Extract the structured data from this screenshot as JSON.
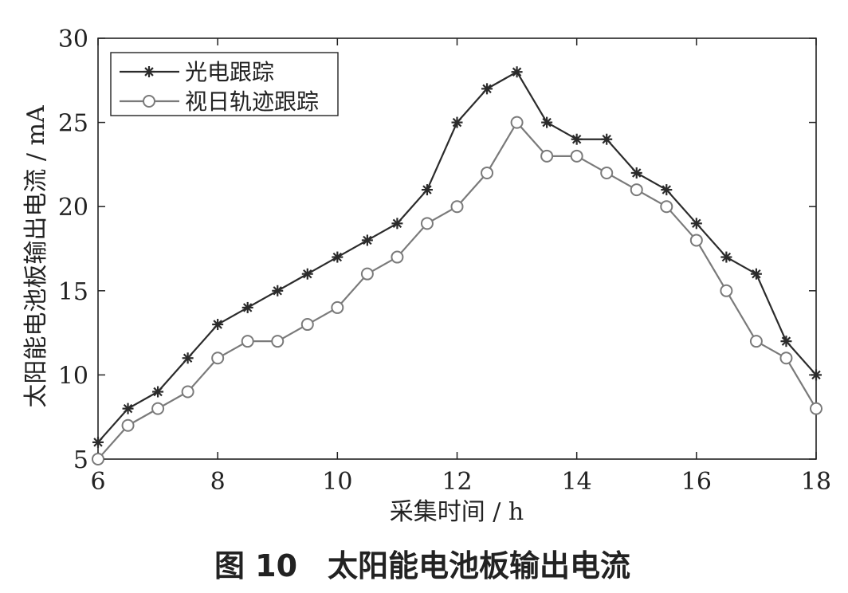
{
  "figure": {
    "caption": "图 10　太阳能电池板输出电流"
  },
  "chart_data": {
    "type": "line",
    "title": "",
    "xlabel": "采集时间 / h",
    "ylabel": "太阳能电池板输出电流 / mA",
    "xlim": [
      6,
      18
    ],
    "ylim": [
      5,
      30
    ],
    "x_ticks": [
      6,
      8,
      10,
      12,
      14,
      16,
      18
    ],
    "y_ticks": [
      5,
      10,
      15,
      20,
      25,
      30
    ],
    "grid": false,
    "legend_position": "top-left",
    "x": [
      6,
      6.5,
      7,
      7.5,
      8,
      8.5,
      9,
      9.5,
      10,
      10.5,
      11,
      11.5,
      12,
      12.5,
      13,
      13.5,
      14,
      14.5,
      15,
      15.5,
      16,
      16.5,
      17,
      17.5,
      18
    ],
    "series": [
      {
        "name": "光电跟踪",
        "marker": "asterisk",
        "color": "#2b2b2b",
        "values": [
          6,
          8,
          9,
          11,
          13,
          14,
          15,
          16,
          17,
          18,
          19,
          21,
          25,
          27,
          28,
          25,
          24,
          24,
          22,
          21,
          19,
          17,
          16,
          12,
          10
        ]
      },
      {
        "name": "视日轨迹跟踪",
        "marker": "circle",
        "color": "#7a7a7a",
        "values": [
          5,
          7,
          8,
          9,
          11,
          12,
          12,
          13,
          14,
          16,
          17,
          19,
          20,
          22,
          25,
          23,
          23,
          22,
          21,
          20,
          18,
          15,
          12,
          11,
          8
        ]
      }
    ]
  }
}
